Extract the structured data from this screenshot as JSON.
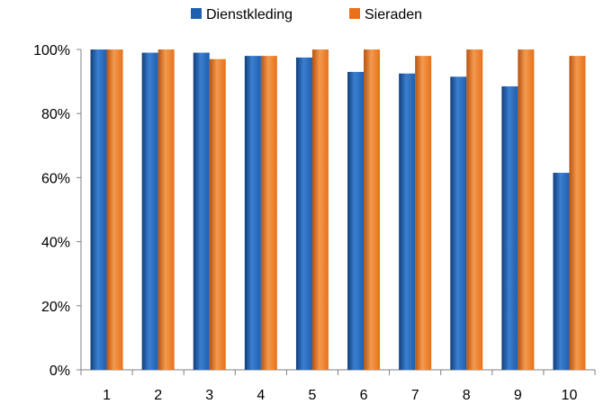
{
  "chart_data": {
    "type": "bar",
    "title": "",
    "xlabel": "",
    "ylabel": "",
    "categories": [
      "1",
      "2",
      "3",
      "4",
      "5",
      "6",
      "7",
      "8",
      "9",
      "10"
    ],
    "series": [
      {
        "name": "Dienstkleding",
        "color": "#1F5FAF",
        "values": [
          100,
          99,
          99,
          98,
          97.5,
          93,
          92.5,
          91.5,
          88.5,
          61.5
        ]
      },
      {
        "name": "Sieraden",
        "color": "#E8711A",
        "values": [
          100,
          100,
          97,
          98,
          100,
          100,
          98,
          100,
          100,
          98
        ]
      }
    ],
    "y_ticks": [
      "0%",
      "20%",
      "40%",
      "60%",
      "80%",
      "100%"
    ],
    "ylim": [
      0,
      100
    ],
    "y_unit": "%",
    "grid": false,
    "legend_position": "top"
  }
}
